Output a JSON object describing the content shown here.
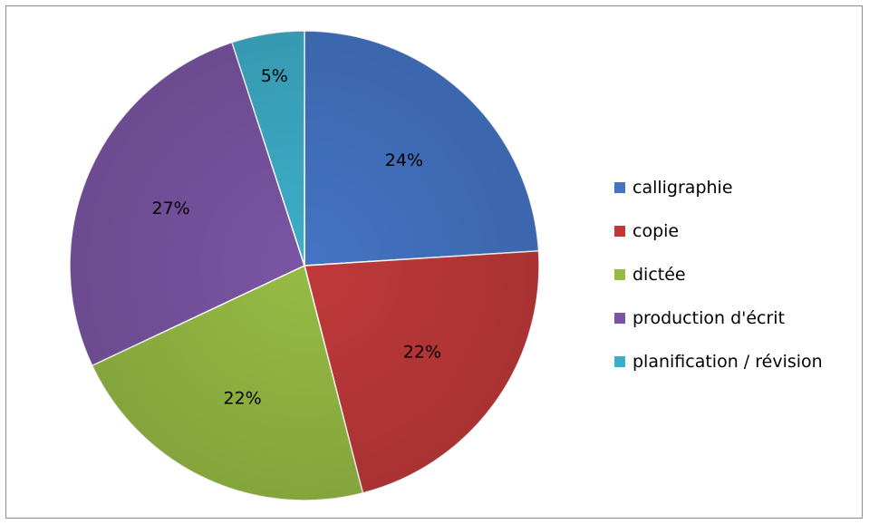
{
  "chart_data": {
    "type": "pie",
    "title": "",
    "categories": [
      "calligraphie",
      "copie",
      "dictée",
      "production d'écrit",
      "planification / révision"
    ],
    "values": [
      24,
      22,
      22,
      27,
      5
    ],
    "data_labels": [
      "24%",
      "22%",
      "22%",
      "27%",
      "5%"
    ],
    "colors": [
      "#4474c4",
      "#c0393a",
      "#96bb44",
      "#7a55a3",
      "#3daec9"
    ],
    "start_angle_deg": 0,
    "direction": "clockwise",
    "legend_position": "right"
  }
}
